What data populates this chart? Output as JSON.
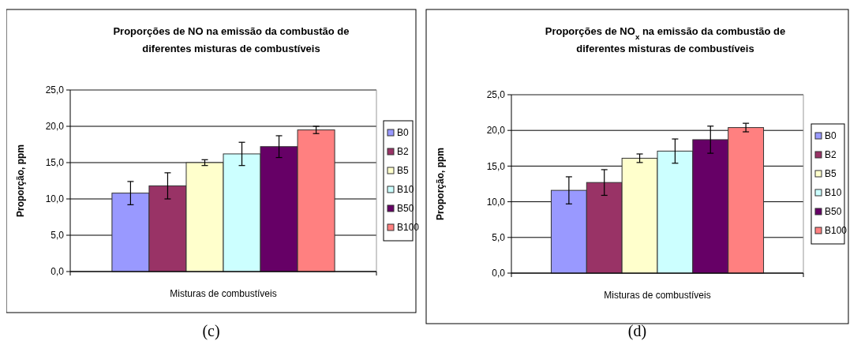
{
  "chart_data": [
    {
      "type": "bar",
      "title": "Proporções de NO na emissão da combustão de diferentes misturas de combustíveis",
      "xlabel": "Misturas de combustíveis",
      "ylabel": "Proporção, ppm",
      "categories": [
        null
      ],
      "series": [
        {
          "name": "B0",
          "color": "#9999ff",
          "values": [
            10.8
          ],
          "errors": [
            1.6
          ]
        },
        {
          "name": "B2",
          "color": "#993366",
          "values": [
            11.8
          ],
          "errors": [
            1.8
          ]
        },
        {
          "name": "B5",
          "color": "#ffffcc",
          "values": [
            15.0
          ],
          "errors": [
            0.4
          ]
        },
        {
          "name": "B10",
          "color": "#ccffff",
          "values": [
            16.2
          ],
          "errors": [
            1.6
          ]
        },
        {
          "name": "B50",
          "color": "#660066",
          "values": [
            17.2
          ],
          "errors": [
            1.5
          ]
        },
        {
          "name": "B100",
          "color": "#ff8080",
          "values": [
            19.5
          ],
          "errors": [
            0.5
          ]
        }
      ],
      "ylim": [
        0,
        25
      ],
      "yticks": [
        {
          "value": 0,
          "label": "0,0"
        },
        {
          "value": 5,
          "label": "5,0"
        },
        {
          "value": 10,
          "label": "10,0"
        },
        {
          "value": 15,
          "label": "15,0"
        },
        {
          "value": 20,
          "label": "20,0"
        },
        {
          "value": 25,
          "label": "25,0"
        }
      ],
      "grid": "y",
      "legend": "right",
      "annotations": [
        "(c)"
      ]
    },
    {
      "type": "bar",
      "title": "Proporções de NO$_{x}$ na emissão da combustão de diferentes misturas de combustíveis",
      "xlabel": "Misturas de combustíveis",
      "ylabel": "Proporção, ppm",
      "categories": [
        null
      ],
      "series": [
        {
          "name": "B0",
          "color": "#9999ff",
          "values": [
            11.6
          ],
          "errors": [
            1.9
          ]
        },
        {
          "name": "B2",
          "color": "#993366",
          "values": [
            12.7
          ],
          "errors": [
            1.8
          ]
        },
        {
          "name": "B5",
          "color": "#ffffcc",
          "values": [
            16.1
          ],
          "errors": [
            0.6
          ]
        },
        {
          "name": "B10",
          "color": "#ccffff",
          "values": [
            17.1
          ],
          "errors": [
            1.7
          ]
        },
        {
          "name": "B50",
          "color": "#660066",
          "values": [
            18.7
          ],
          "errors": [
            1.9
          ]
        },
        {
          "name": "B100",
          "color": "#ff8080",
          "values": [
            20.4
          ],
          "errors": [
            0.6
          ]
        }
      ],
      "ylim": [
        0,
        25
      ],
      "yticks": [
        {
          "value": 0,
          "label": "0,0"
        },
        {
          "value": 5,
          "label": "5,0"
        },
        {
          "value": 10,
          "label": "10,0"
        },
        {
          "value": 15,
          "label": "15,0"
        },
        {
          "value": 20,
          "label": "20,0"
        },
        {
          "value": 25,
          "label": "25,0"
        }
      ],
      "grid": "y",
      "legend": "right",
      "annotations": [
        "(d)"
      ]
    }
  ]
}
